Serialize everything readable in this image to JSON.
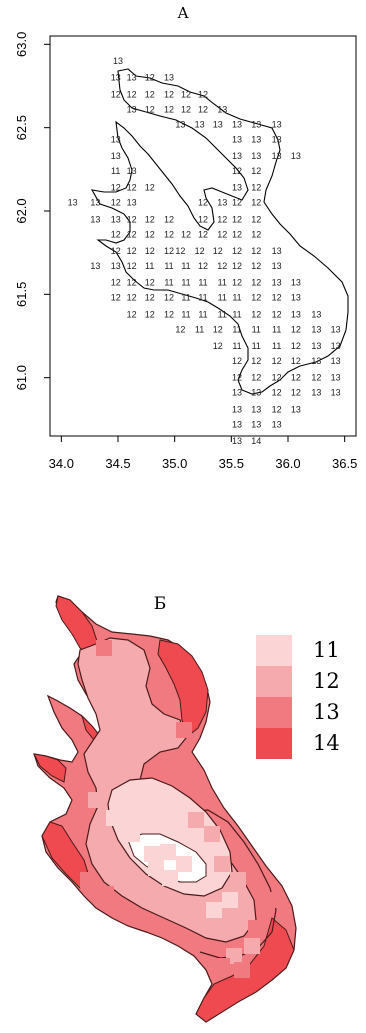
{
  "panel_a_label": "А",
  "panel_b_label": "Б",
  "colors": {
    "11": "#fbd4d6",
    "12": "#f5aaae",
    "13": "#f07a80",
    "14": "#ee4a50",
    "outline": "#000000"
  },
  "chart_data": [
    {
      "type": "scatter",
      "title": "",
      "xlabel": "",
      "ylabel": "",
      "xlim": [
        33.9,
        36.6
      ],
      "ylim": [
        60.65,
        63.05
      ],
      "x_ticks": [
        "34.0",
        "34.5",
        "35.0",
        "35.5",
        "36.0",
        "36.5"
      ],
      "y_ticks": [
        "61.0",
        "61.5",
        "62.0",
        "62.5",
        "63.0"
      ],
      "grid": false,
      "point_labels": [
        {
          "x": 34.5,
          "y": 62.9,
          "label": "13"
        },
        {
          "x": 34.48,
          "y": 62.8,
          "label": "13"
        },
        {
          "x": 34.62,
          "y": 62.8,
          "label": "13"
        },
        {
          "x": 34.78,
          "y": 62.8,
          "label": "12"
        },
        {
          "x": 34.95,
          "y": 62.8,
          "label": "13"
        },
        {
          "x": 34.48,
          "y": 62.7,
          "label": "12"
        },
        {
          "x": 34.62,
          "y": 62.7,
          "label": "12"
        },
        {
          "x": 34.78,
          "y": 62.7,
          "label": "12"
        },
        {
          "x": 34.95,
          "y": 62.7,
          "label": "12"
        },
        {
          "x": 35.1,
          "y": 62.7,
          "label": "12"
        },
        {
          "x": 35.25,
          "y": 62.7,
          "label": "12"
        },
        {
          "x": 34.62,
          "y": 62.61,
          "label": "13"
        },
        {
          "x": 34.78,
          "y": 62.61,
          "label": "12"
        },
        {
          "x": 34.95,
          "y": 62.61,
          "label": "12"
        },
        {
          "x": 35.1,
          "y": 62.61,
          "label": "12"
        },
        {
          "x": 35.25,
          "y": 62.61,
          "label": "12"
        },
        {
          "x": 35.42,
          "y": 62.61,
          "label": "13"
        },
        {
          "x": 35.05,
          "y": 62.52,
          "label": "13"
        },
        {
          "x": 35.22,
          "y": 62.52,
          "label": "13"
        },
        {
          "x": 35.38,
          "y": 62.52,
          "label": "13"
        },
        {
          "x": 35.55,
          "y": 62.52,
          "label": "13"
        },
        {
          "x": 35.72,
          "y": 62.52,
          "label": "13"
        },
        {
          "x": 35.9,
          "y": 62.52,
          "label": "13"
        },
        {
          "x": 34.48,
          "y": 62.43,
          "label": "13"
        },
        {
          "x": 35.55,
          "y": 62.43,
          "label": "13"
        },
        {
          "x": 35.72,
          "y": 62.43,
          "label": "13"
        },
        {
          "x": 35.9,
          "y": 62.43,
          "label": "13"
        },
        {
          "x": 34.48,
          "y": 62.33,
          "label": "13"
        },
        {
          "x": 35.55,
          "y": 62.33,
          "label": "13"
        },
        {
          "x": 35.72,
          "y": 62.33,
          "label": "13"
        },
        {
          "x": 35.9,
          "y": 62.33,
          "label": "13"
        },
        {
          "x": 36.07,
          "y": 62.33,
          "label": "13"
        },
        {
          "x": 34.48,
          "y": 62.24,
          "label": "11"
        },
        {
          "x": 34.62,
          "y": 62.24,
          "label": "13"
        },
        {
          "x": 35.55,
          "y": 62.24,
          "label": "12"
        },
        {
          "x": 35.72,
          "y": 62.24,
          "label": "12"
        },
        {
          "x": 34.48,
          "y": 62.14,
          "label": "12"
        },
        {
          "x": 34.62,
          "y": 62.14,
          "label": "12"
        },
        {
          "x": 34.78,
          "y": 62.14,
          "label": "12"
        },
        {
          "x": 35.55,
          "y": 62.14,
          "label": "13"
        },
        {
          "x": 35.72,
          "y": 62.14,
          "label": "12"
        },
        {
          "x": 34.1,
          "y": 62.05,
          "label": "13"
        },
        {
          "x": 34.3,
          "y": 62.05,
          "label": "13"
        },
        {
          "x": 34.48,
          "y": 62.05,
          "label": "12"
        },
        {
          "x": 34.62,
          "y": 62.05,
          "label": "13"
        },
        {
          "x": 35.25,
          "y": 62.05,
          "label": "12"
        },
        {
          "x": 35.42,
          "y": 62.05,
          "label": "13"
        },
        {
          "x": 35.55,
          "y": 62.05,
          "label": "12"
        },
        {
          "x": 35.72,
          "y": 62.05,
          "label": "12"
        },
        {
          "x": 34.3,
          "y": 61.95,
          "label": "13"
        },
        {
          "x": 34.48,
          "y": 61.95,
          "label": "13"
        },
        {
          "x": 34.62,
          "y": 61.95,
          "label": "12"
        },
        {
          "x": 34.78,
          "y": 61.95,
          "label": "12"
        },
        {
          "x": 34.95,
          "y": 61.95,
          "label": "12"
        },
        {
          "x": 35.25,
          "y": 61.95,
          "label": "12"
        },
        {
          "x": 35.42,
          "y": 61.95,
          "label": "12"
        },
        {
          "x": 35.55,
          "y": 61.95,
          "label": "12"
        },
        {
          "x": 35.72,
          "y": 61.95,
          "label": "12"
        },
        {
          "x": 34.48,
          "y": 61.86,
          "label": "12"
        },
        {
          "x": 34.62,
          "y": 61.86,
          "label": "12"
        },
        {
          "x": 34.78,
          "y": 61.86,
          "label": "12"
        },
        {
          "x": 34.95,
          "y": 61.86,
          "label": "12"
        },
        {
          "x": 35.1,
          "y": 61.86,
          "label": "12"
        },
        {
          "x": 35.25,
          "y": 61.86,
          "label": "12"
        },
        {
          "x": 35.42,
          "y": 61.86,
          "label": "12"
        },
        {
          "x": 35.55,
          "y": 61.86,
          "label": "12"
        },
        {
          "x": 35.72,
          "y": 61.86,
          "label": "12"
        },
        {
          "x": 34.48,
          "y": 61.76,
          "label": "12"
        },
        {
          "x": 34.62,
          "y": 61.76,
          "label": "12"
        },
        {
          "x": 34.78,
          "y": 61.76,
          "label": "12"
        },
        {
          "x": 34.95,
          "y": 61.76,
          "label": "12"
        },
        {
          "x": 35.05,
          "y": 61.76,
          "label": "12"
        },
        {
          "x": 35.22,
          "y": 61.76,
          "label": "12"
        },
        {
          "x": 35.38,
          "y": 61.76,
          "label": "12"
        },
        {
          "x": 35.55,
          "y": 61.76,
          "label": "12"
        },
        {
          "x": 35.72,
          "y": 61.76,
          "label": "12"
        },
        {
          "x": 35.9,
          "y": 61.76,
          "label": "13"
        },
        {
          "x": 34.3,
          "y": 61.67,
          "label": "13"
        },
        {
          "x": 34.48,
          "y": 61.67,
          "label": "13"
        },
        {
          "x": 34.62,
          "y": 61.67,
          "label": "12"
        },
        {
          "x": 34.78,
          "y": 61.67,
          "label": "11"
        },
        {
          "x": 34.95,
          "y": 61.67,
          "label": "11"
        },
        {
          "x": 35.1,
          "y": 61.67,
          "label": "11"
        },
        {
          "x": 35.25,
          "y": 61.67,
          "label": "12"
        },
        {
          "x": 35.42,
          "y": 61.67,
          "label": "12"
        },
        {
          "x": 35.55,
          "y": 61.67,
          "label": "12"
        },
        {
          "x": 35.72,
          "y": 61.67,
          "label": "12"
        },
        {
          "x": 35.9,
          "y": 61.67,
          "label": "13"
        },
        {
          "x": 34.48,
          "y": 61.57,
          "label": "12"
        },
        {
          "x": 34.62,
          "y": 61.57,
          "label": "12"
        },
        {
          "x": 34.78,
          "y": 61.57,
          "label": "12"
        },
        {
          "x": 34.95,
          "y": 61.57,
          "label": "11"
        },
        {
          "x": 35.1,
          "y": 61.57,
          "label": "11"
        },
        {
          "x": 35.25,
          "y": 61.57,
          "label": "11"
        },
        {
          "x": 35.42,
          "y": 61.57,
          "label": "11"
        },
        {
          "x": 35.55,
          "y": 61.57,
          "label": "12"
        },
        {
          "x": 35.72,
          "y": 61.57,
          "label": "12"
        },
        {
          "x": 35.9,
          "y": 61.57,
          "label": "13"
        },
        {
          "x": 36.07,
          "y": 61.57,
          "label": "13"
        },
        {
          "x": 34.48,
          "y": 61.48,
          "label": "12"
        },
        {
          "x": 34.62,
          "y": 61.48,
          "label": "12"
        },
        {
          "x": 34.78,
          "y": 61.48,
          "label": "12"
        },
        {
          "x": 34.95,
          "y": 61.48,
          "label": "12"
        },
        {
          "x": 35.1,
          "y": 61.48,
          "label": "11"
        },
        {
          "x": 35.25,
          "y": 61.48,
          "label": "11"
        },
        {
          "x": 35.42,
          "y": 61.48,
          "label": "11"
        },
        {
          "x": 35.55,
          "y": 61.48,
          "label": "11"
        },
        {
          "x": 35.72,
          "y": 61.48,
          "label": "12"
        },
        {
          "x": 35.9,
          "y": 61.48,
          "label": "12"
        },
        {
          "x": 36.07,
          "y": 61.48,
          "label": "13"
        },
        {
          "x": 34.62,
          "y": 61.38,
          "label": "12"
        },
        {
          "x": 34.78,
          "y": 61.38,
          "label": "12"
        },
        {
          "x": 34.95,
          "y": 61.38,
          "label": "12"
        },
        {
          "x": 35.1,
          "y": 61.38,
          "label": "11"
        },
        {
          "x": 35.25,
          "y": 61.38,
          "label": "11"
        },
        {
          "x": 35.42,
          "y": 61.38,
          "label": "11"
        },
        {
          "x": 35.55,
          "y": 61.38,
          "label": "11"
        },
        {
          "x": 35.72,
          "y": 61.38,
          "label": "12"
        },
        {
          "x": 35.9,
          "y": 61.38,
          "label": "12"
        },
        {
          "x": 36.07,
          "y": 61.38,
          "label": "13"
        },
        {
          "x": 36.25,
          "y": 61.38,
          "label": "13"
        },
        {
          "x": 35.05,
          "y": 61.29,
          "label": "12"
        },
        {
          "x": 35.22,
          "y": 61.29,
          "label": "11"
        },
        {
          "x": 35.38,
          "y": 61.29,
          "label": "12"
        },
        {
          "x": 35.55,
          "y": 61.29,
          "label": "11"
        },
        {
          "x": 35.72,
          "y": 61.29,
          "label": "11"
        },
        {
          "x": 35.9,
          "y": 61.29,
          "label": "11"
        },
        {
          "x": 36.07,
          "y": 61.29,
          "label": "12"
        },
        {
          "x": 36.25,
          "y": 61.29,
          "label": "13"
        },
        {
          "x": 36.42,
          "y": 61.29,
          "label": "13"
        },
        {
          "x": 35.38,
          "y": 61.19,
          "label": "12"
        },
        {
          "x": 35.55,
          "y": 61.19,
          "label": "11"
        },
        {
          "x": 35.72,
          "y": 61.19,
          "label": "11"
        },
        {
          "x": 35.9,
          "y": 61.19,
          "label": "11"
        },
        {
          "x": 36.07,
          "y": 61.19,
          "label": "12"
        },
        {
          "x": 36.25,
          "y": 61.19,
          "label": "13"
        },
        {
          "x": 36.42,
          "y": 61.19,
          "label": "13"
        },
        {
          "x": 35.55,
          "y": 61.1,
          "label": "12"
        },
        {
          "x": 35.72,
          "y": 61.1,
          "label": "12"
        },
        {
          "x": 35.9,
          "y": 61.1,
          "label": "12"
        },
        {
          "x": 36.07,
          "y": 61.1,
          "label": "12"
        },
        {
          "x": 36.25,
          "y": 61.1,
          "label": "13"
        },
        {
          "x": 36.42,
          "y": 61.1,
          "label": "13"
        },
        {
          "x": 35.55,
          "y": 61.0,
          "label": "12"
        },
        {
          "x": 35.72,
          "y": 61.0,
          "label": "12"
        },
        {
          "x": 35.9,
          "y": 61.0,
          "label": "12"
        },
        {
          "x": 36.07,
          "y": 61.0,
          "label": "12"
        },
        {
          "x": 36.25,
          "y": 61.0,
          "label": "12"
        },
        {
          "x": 36.42,
          "y": 61.0,
          "label": "13"
        },
        {
          "x": 35.55,
          "y": 60.91,
          "label": "13"
        },
        {
          "x": 35.72,
          "y": 60.91,
          "label": "13"
        },
        {
          "x": 35.9,
          "y": 60.91,
          "label": "12"
        },
        {
          "x": 36.07,
          "y": 60.91,
          "label": "12"
        },
        {
          "x": 36.25,
          "y": 60.91,
          "label": "13"
        },
        {
          "x": 36.42,
          "y": 60.91,
          "label": "13"
        },
        {
          "x": 35.55,
          "y": 60.81,
          "label": "13"
        },
        {
          "x": 35.72,
          "y": 60.81,
          "label": "13"
        },
        {
          "x": 35.9,
          "y": 60.81,
          "label": "12"
        },
        {
          "x": 36.07,
          "y": 60.81,
          "label": "13"
        },
        {
          "x": 35.55,
          "y": 60.72,
          "label": "13"
        },
        {
          "x": 35.72,
          "y": 60.72,
          "label": "13"
        },
        {
          "x": 35.9,
          "y": 60.72,
          "label": "13"
        },
        {
          "x": 35.55,
          "y": 60.62,
          "label": "13"
        },
        {
          "x": 35.72,
          "y": 60.62,
          "label": "14"
        }
      ]
    },
    {
      "type": "heatmap",
      "title": "",
      "legend": [
        {
          "label": "11",
          "color_key": "11"
        },
        {
          "label": "12",
          "color_key": "12"
        },
        {
          "label": "13",
          "color_key": "13"
        },
        {
          "label": "14",
          "color_key": "14"
        }
      ],
      "legend_position": "right"
    }
  ]
}
